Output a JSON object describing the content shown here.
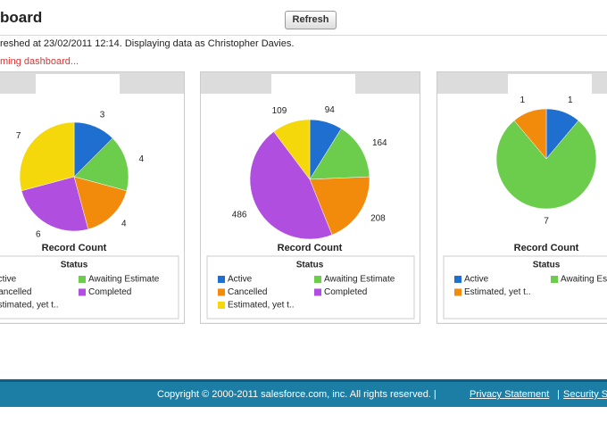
{
  "header": {
    "title": "board",
    "button": "Refresh",
    "status": "reshed at 23/02/2011 12:14. Displaying data as Christopher Davies.",
    "notice": "ming dashboard..."
  },
  "chart_data": [
    {
      "type": "pie",
      "title": "Record Count",
      "legend_title": "Status",
      "categories": [
        "Active",
        "Awaiting Estimate",
        "Cancelled",
        "Completed",
        "Estimated, yet t.."
      ],
      "values": [
        3,
        4,
        4,
        6,
        7
      ],
      "colors": [
        "#1f6fd0",
        "#6ccc4c",
        "#f28a0c",
        "#b04ee0",
        "#f5d80c"
      ]
    },
    {
      "type": "pie",
      "title": "Record Count",
      "legend_title": "Status",
      "categories": [
        "Active",
        "Awaiting Estimate",
        "Cancelled",
        "Completed",
        "Estimated, yet t.."
      ],
      "values": [
        94,
        164,
        208,
        486,
        109
      ],
      "colors": [
        "#1f6fd0",
        "#6ccc4c",
        "#f28a0c",
        "#b04ee0",
        "#f5d80c"
      ]
    },
    {
      "type": "pie",
      "title": "Record Count",
      "legend_title": "Status",
      "categories": [
        "Active",
        "Awaiting Estimate",
        "Estimated, yet t.."
      ],
      "values": [
        1,
        7,
        1
      ],
      "colors": [
        "#1f6fd0",
        "#6ccc4c",
        "#f28a0c"
      ]
    }
  ],
  "footer": {
    "copyright": "Copyright © 2000-2011 salesforce.com, inc. All rights reserved. |",
    "privacy": "Privacy Statement",
    "separator": "|",
    "security": "Security S"
  }
}
